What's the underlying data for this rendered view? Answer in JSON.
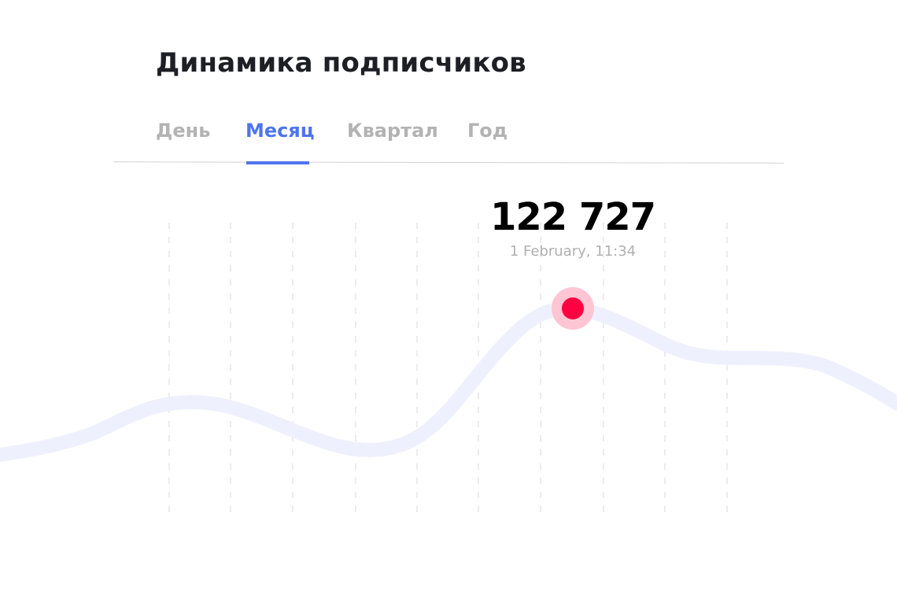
{
  "header": {
    "title": "Динамика подписчиков"
  },
  "tabs": [
    {
      "label": "День",
      "active": false
    },
    {
      "label": "Месяц",
      "active": true
    },
    {
      "label": "Квартал",
      "active": false
    },
    {
      "label": "Год",
      "active": false
    }
  ],
  "tooltip": {
    "value": "122 727",
    "date": "1 February, 11:34"
  },
  "colors": {
    "accent": "#4f74ed",
    "line": "#eef1fd",
    "marker": "#ff0040",
    "marker_halo": "#ffc5d3"
  }
}
